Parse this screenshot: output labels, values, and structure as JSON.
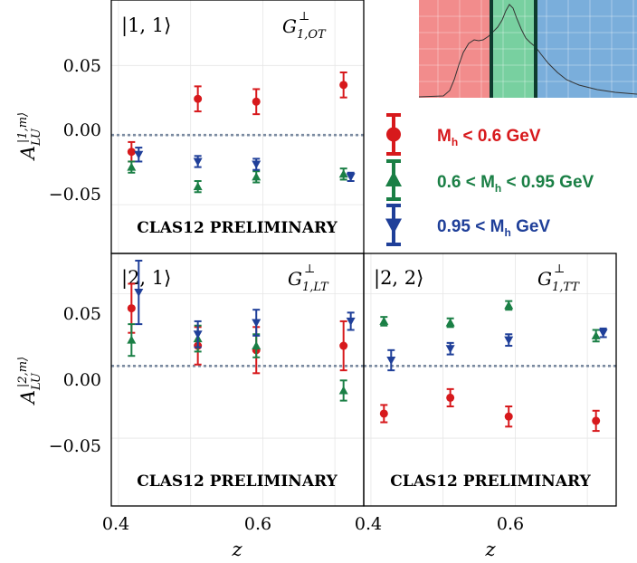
{
  "colors": {
    "red": "#d7191c",
    "green": "#1a7f45",
    "blue": "#1f3f99",
    "refline": "#7a8aa0"
  },
  "axis": {
    "xlabel": "z",
    "ylabel_top": "A_LU^{|1,m⟩}",
    "ylabel_bottom": "A_LU^{|2,m⟩}",
    "yticks": [
      "0.05",
      "0.00",
      "−0.05"
    ],
    "xticks": [
      "0.4",
      "0.6"
    ]
  },
  "panels": {
    "p11": {
      "state": "|1, 1⟩",
      "tmd": "G",
      "tmd_sub": "1,OT",
      "tmd_sup": "⊥",
      "prelim": "CLAS12 PRELIMINARY"
    },
    "p21": {
      "state": "|2, 1⟩",
      "tmd": "G",
      "tmd_sub": "1,LT",
      "tmd_sup": "⊥",
      "prelim": "CLAS12 PRELIMINARY"
    },
    "p22": {
      "state": "|2, 2⟩",
      "tmd": "G",
      "tmd_sub": "1,TT",
      "tmd_sup": "⊥",
      "prelim": "CLAS12 PRELIMINARY"
    }
  },
  "legend": [
    {
      "label_pre": "M",
      "label_sub": "h",
      "label_post": " < 0.6 GeV",
      "marker": "circle",
      "color": "#d7191c"
    },
    {
      "label_pre": "0.6 < M",
      "label_sub": "h",
      "label_post": " < 0.95 GeV",
      "marker": "triangle-up",
      "color": "#1a7f45"
    },
    {
      "label_pre": "0.95 < M",
      "label_sub": "h",
      "label_post": " GeV",
      "marker": "triangle-down",
      "color": "#1f3f99"
    }
  ],
  "chart_data": [
    {
      "type": "scatter",
      "panel": "|1, 1⟩",
      "xlim": [
        0.39,
        0.74
      ],
      "ylim": [
        -0.085,
        0.097
      ],
      "grid": true,
      "series": [
        {
          "name": "M_h < 0.6 GeV",
          "marker": "circle",
          "color": "#d7191c",
          "x": [
            0.418,
            0.51,
            0.591,
            0.712
          ],
          "y": [
            -0.012,
            0.026,
            0.024,
            0.036
          ],
          "err": [
            0.007,
            0.009,
            0.009,
            0.009
          ]
        },
        {
          "name": "0.6 < M_h < 0.95 GeV",
          "marker": "triangle-up",
          "color": "#1a7f45",
          "x": [
            0.418,
            0.51,
            0.591,
            0.712
          ],
          "y": [
            -0.023,
            -0.037,
            -0.03,
            -0.028
          ],
          "err": [
            0.004,
            0.004,
            0.004,
            0.004
          ]
        },
        {
          "name": "0.95 < M_h GeV",
          "marker": "triangle-down",
          "color": "#1f3f99",
          "x": [
            0.428,
            0.51,
            0.591,
            0.722
          ],
          "y": [
            -0.014,
            -0.019,
            -0.021,
            -0.03
          ],
          "err": [
            0.005,
            0.004,
            0.004,
            0.003
          ]
        }
      ]
    },
    {
      "type": "scatter",
      "panel": "|2, 1⟩",
      "xlim": [
        0.39,
        0.74
      ],
      "ylim": [
        -0.097,
        0.078
      ],
      "grid": true,
      "series": [
        {
          "name": "M_h < 0.6 GeV",
          "marker": "circle",
          "color": "#d7191c",
          "x": [
            0.418,
            0.51,
            0.591,
            0.712
          ],
          "y": [
            0.04,
            0.014,
            0.011,
            0.014
          ],
          "err": [
            0.017,
            0.013,
            0.016,
            0.017
          ]
        },
        {
          "name": "0.6 < M_h < 0.95 GeV",
          "marker": "triangle-up",
          "color": "#1a7f45",
          "x": [
            0.418,
            0.51,
            0.591,
            0.712
          ],
          "y": [
            0.018,
            0.019,
            0.014,
            -0.017
          ],
          "err": [
            0.011,
            0.009,
            0.008,
            0.007
          ]
        },
        {
          "name": "0.95 < M_h GeV",
          "marker": "triangle-down",
          "color": "#1f3f99",
          "x": [
            0.428,
            0.51,
            0.591,
            0.722
          ],
          "y": [
            0.051,
            0.022,
            0.03,
            0.031
          ],
          "err": [
            0.022,
            0.009,
            0.009,
            0.006
          ]
        }
      ]
    },
    {
      "type": "scatter",
      "panel": "|2, 2⟩",
      "xlim": [
        0.39,
        0.74
      ],
      "ylim": [
        -0.097,
        0.078
      ],
      "grid": true,
      "series": [
        {
          "name": "M_h < 0.6 GeV",
          "marker": "circle",
          "color": "#d7191c",
          "x": [
            0.418,
            0.51,
            0.591,
            0.712
          ],
          "y": [
            -0.033,
            -0.022,
            -0.035,
            -0.038
          ],
          "err": [
            0.006,
            0.006,
            0.007,
            0.007
          ]
        },
        {
          "name": "0.6 < M_h < 0.95 GeV",
          "marker": "triangle-up",
          "color": "#1a7f45",
          "x": [
            0.418,
            0.51,
            0.591,
            0.712
          ],
          "y": [
            0.031,
            0.03,
            0.042,
            0.021
          ],
          "err": [
            0.003,
            0.003,
            0.003,
            0.004
          ]
        },
        {
          "name": "0.95 < M_h GeV",
          "marker": "triangle-down",
          "color": "#1f3f99",
          "x": [
            0.428,
            0.51,
            0.591,
            0.722
          ],
          "y": [
            0.004,
            0.012,
            0.018,
            0.023
          ],
          "err": [
            0.007,
            0.004,
            0.004,
            0.003
          ]
        }
      ]
    }
  ],
  "inset": {
    "type": "histogram",
    "regions": [
      {
        "name": "M_h < 0.6 GeV",
        "color": "#f28c8c"
      },
      {
        "name": "0.6 < M_h < 0.95 GeV",
        "color": "#78d0a0"
      },
      {
        "name": "0.95 < M_h GeV",
        "color": "#7aaedb"
      }
    ],
    "divider_color": "#0d3b2e"
  }
}
